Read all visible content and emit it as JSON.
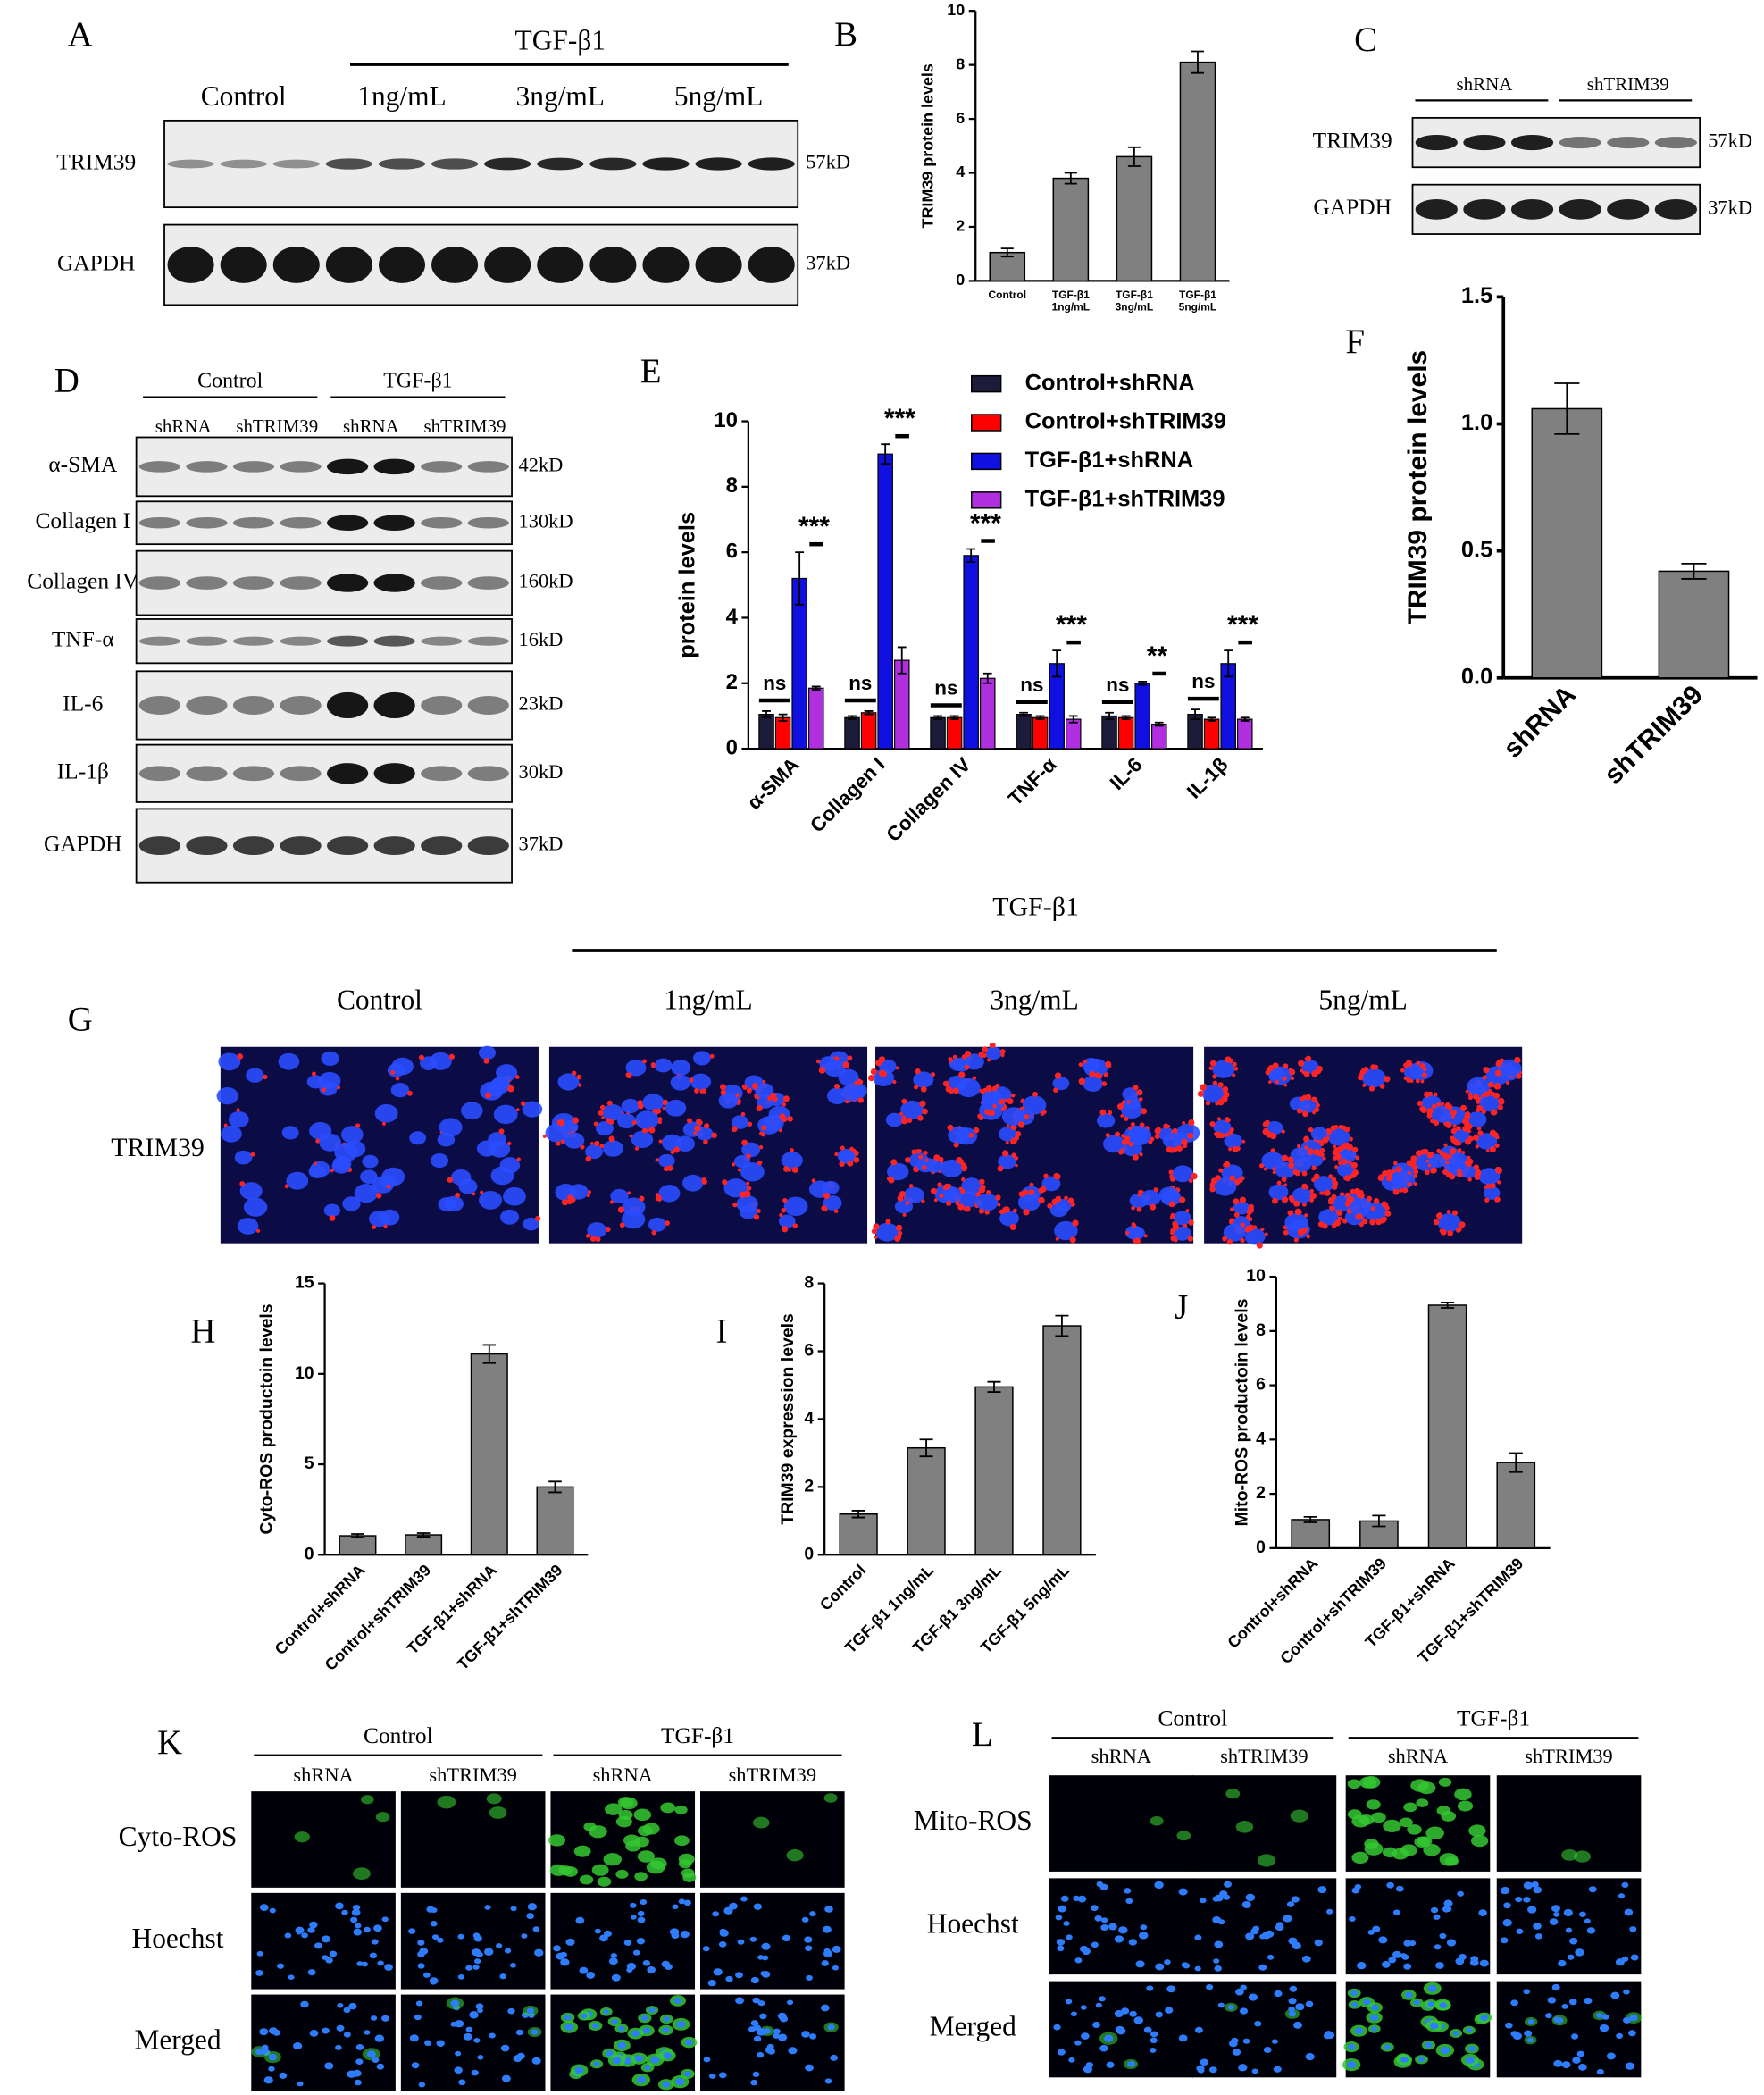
{
  "blot_a": {
    "panel": "A",
    "treatment": "TGF-β1",
    "groups": [
      "Control",
      "1ng/mL",
      "3ng/mL",
      "5ng/mL"
    ],
    "rows": [
      "TRIM39",
      "GAPDH"
    ],
    "sizes": [
      "57kD",
      "37kD"
    ]
  },
  "blot_c": {
    "panel": "C",
    "groups": [
      "shRNA",
      "shTRIM39"
    ],
    "rows": [
      "TRIM39",
      "GAPDH"
    ],
    "sizes": [
      "57kD",
      "37kD"
    ]
  },
  "blot_d": {
    "panel": "D",
    "groups": [
      "Control",
      "TGF-β1"
    ],
    "subgroups": [
      "shRNA",
      "shTRIM39",
      "shRNA",
      "shTRIM39"
    ],
    "rows": [
      "α-SMA",
      "Collagen I",
      "Collagen IV",
      "TNF-α",
      "IL-6",
      "IL-1β",
      "GAPDH"
    ],
    "sizes": [
      "42kD",
      "130kD",
      "160kD",
      "16kD",
      "23kD",
      "30kD",
      "37kD"
    ]
  },
  "image_g": {
    "panel": "G",
    "treatment": "TGF-β1",
    "groups": [
      "Control",
      "1ng/mL",
      "3ng/mL",
      "5ng/mL"
    ],
    "row": "TRIM39"
  },
  "image_k": {
    "panel": "K",
    "groups": [
      "Control",
      "TGF-β1"
    ],
    "subgroups": [
      "shRNA",
      "shTRIM39",
      "shRNA",
      "shTRIM39"
    ],
    "rows": [
      "Cyto-ROS",
      "Hoechst",
      "Merged"
    ]
  },
  "image_l": {
    "panel": "L",
    "groups": [
      "Control",
      "TGF-β1"
    ],
    "subgroups": [
      "shRNA",
      "shTRIM39",
      "shRNA",
      "shTRIM39"
    ],
    "rows": [
      "Mito-ROS",
      "Hoechst",
      "Merged"
    ]
  },
  "chart_data": [
    {
      "type": "bar",
      "panel": "B",
      "ylabel": "TRIM39 protein levels",
      "categories": [
        "Control",
        "TGF-β1 1ng/mL",
        "TGF-β1 3ng/mL",
        "TGF-β1 5ng/mL"
      ],
      "values": [
        1.05,
        3.8,
        4.6,
        8.1
      ],
      "errors": [
        0.15,
        0.2,
        0.35,
        0.4
      ],
      "color": "#808080",
      "ylim": [
        0,
        10
      ],
      "yticks": [
        0,
        2,
        4,
        6,
        8,
        10
      ]
    },
    {
      "type": "grouped_bar",
      "panel": "E",
      "ylabel": "protein levels",
      "categories": [
        "α-SMA",
        "Collagen I",
        "Collagen IV",
        "TNF-α",
        "IL-6",
        "IL-1β"
      ],
      "series": [
        {
          "name": "Control+shRNA",
          "color": "#1c1c3a",
          "values": [
            1.05,
            0.95,
            0.95,
            1.05,
            1.0,
            1.05
          ],
          "errors": [
            0.1,
            0.05,
            0.05,
            0.05,
            0.1,
            0.15
          ]
        },
        {
          "name": "Control+shTRIM39",
          "color": "#ff0000",
          "values": [
            0.95,
            1.1,
            0.95,
            0.95,
            0.95,
            0.9
          ],
          "errors": [
            0.1,
            0.05,
            0.05,
            0.05,
            0.05,
            0.05
          ]
        },
        {
          "name": "TGF-β1+shRNA",
          "color": "#1010e0",
          "values": [
            5.2,
            9.0,
            5.9,
            2.6,
            2.0,
            2.6
          ],
          "errors": [
            0.8,
            0.3,
            0.2,
            0.4,
            0.05,
            0.4
          ]
        },
        {
          "name": "TGF-β1+shTRIM39",
          "color": "#b030e0",
          "values": [
            1.85,
            2.7,
            2.15,
            0.9,
            0.75,
            0.9
          ],
          "errors": [
            0.05,
            0.4,
            0.15,
            0.1,
            0.05,
            0.05
          ]
        }
      ],
      "significance_left": [
        "ns",
        "ns",
        "ns",
        "ns",
        "ns",
        "ns"
      ],
      "significance_right": [
        "***",
        "***",
        "***",
        "***",
        "**",
        "***"
      ],
      "ylim": [
        0,
        10
      ],
      "yticks": [
        0,
        2,
        4,
        6,
        8,
        10
      ]
    },
    {
      "type": "bar",
      "panel": "F",
      "ylabel": "TRIM39 protein levels",
      "categories": [
        "shRNA",
        "shTRIM39"
      ],
      "values": [
        1.06,
        0.42
      ],
      "errors": [
        0.1,
        0.03
      ],
      "color": "#808080",
      "ylim": [
        0,
        1.5
      ],
      "yticks": [
        {
          "value": 0,
          "label": "0.0"
        },
        0.5,
        {
          "value": 1,
          "label": "1.0"
        },
        1.5
      ]
    },
    {
      "type": "bar",
      "panel": "H",
      "ylabel": "Cyto-ROS productoin levels",
      "categories": [
        "Control+shRNA",
        "Control+shTRIM39",
        "TGF-β1+shRNA",
        "TGF-β1+shTRIM39"
      ],
      "values": [
        1.05,
        1.1,
        11.1,
        3.75
      ],
      "errors": [
        0.1,
        0.1,
        0.5,
        0.3
      ],
      "color": "#808080",
      "ylim": [
        0,
        15
      ],
      "yticks": [
        0,
        5,
        10,
        15
      ]
    },
    {
      "type": "bar",
      "panel": "I",
      "ylabel": "TRIM39 expression levels",
      "categories": [
        "Control",
        "TGF-β1 1ng/mL",
        "TGF-β1 3ng/mL",
        "TGF-β1 5ng/mL"
      ],
      "values": [
        1.2,
        3.15,
        4.95,
        6.75
      ],
      "errors": [
        0.1,
        0.25,
        0.15,
        0.3
      ],
      "color": "#808080",
      "ylim": [
        0,
        8
      ],
      "yticks": [
        0,
        2,
        4,
        6,
        8
      ]
    },
    {
      "type": "bar",
      "panel": "J",
      "ylabel": "Mito-ROS productoin levels",
      "categories": [
        "Control+shRNA",
        "Control+shTRIM39",
        "TGF-β1+shRNA",
        "TGF-β1+shTRIM39"
      ],
      "values": [
        1.05,
        1.0,
        8.95,
        3.15
      ],
      "errors": [
        0.1,
        0.2,
        0.1,
        0.35
      ],
      "color": "#808080",
      "ylim": [
        0,
        10
      ],
      "yticks": [
        0,
        2,
        4,
        6,
        8,
        10
      ]
    }
  ]
}
